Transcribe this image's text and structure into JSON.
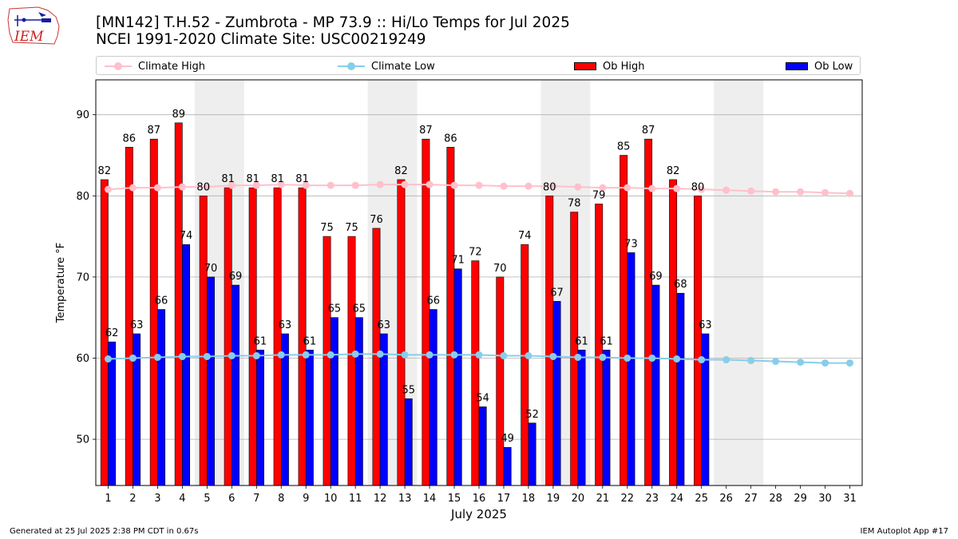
{
  "header": {
    "logo_text": "IEM",
    "title_line1": "[MN142] T.H.52 - Zumbrota - MP 73.9  :: Hi/Lo Temps for Jul 2025",
    "title_line2": "NCEI 1991-2020 Climate Site: USC00219249"
  },
  "legend": {
    "climate_high": "Climate High",
    "climate_low": "Climate Low",
    "ob_high": "Ob High",
    "ob_low": "Ob Low"
  },
  "footer": {
    "left": "Generated at 25 Jul 2025 2:38 PM CDT in 0.67s",
    "right": "IEM Autoplot App #17"
  },
  "colors": {
    "ob_high": "#ff0000",
    "ob_low": "#0000ff",
    "climate_high": "#ffc0cb",
    "climate_low": "#87ceeb",
    "weekend_band": "#eeeeee",
    "grid": "#b0b0b0"
  },
  "chart_data": {
    "type": "bar",
    "title": "[MN142] T.H.52 - Zumbrota - MP 73.9  :: Hi/Lo Temps for Jul 2025",
    "subtitle": "NCEI 1991-2020 Climate Site: USC00219249",
    "xlabel": "July 2025",
    "ylabel": "Temperature °F",
    "ylim": [
      44.3,
      94.3
    ],
    "yticks": [
      50,
      60,
      70,
      80,
      90
    ],
    "grid": "horizontal",
    "legend_position": "top",
    "days": [
      1,
      2,
      3,
      4,
      5,
      6,
      7,
      8,
      9,
      10,
      11,
      12,
      13,
      14,
      15,
      16,
      17,
      18,
      19,
      20,
      21,
      22,
      23,
      24,
      25,
      26,
      27,
      28,
      29,
      30,
      31
    ],
    "weekend_shaded_days": [
      [
        5,
        6
      ],
      [
        12,
        13
      ],
      [
        19,
        20
      ],
      [
        26,
        27
      ]
    ],
    "series": [
      {
        "name": "Ob High",
        "kind": "bar",
        "color": "#ff0000",
        "values": [
          82,
          86,
          87,
          89,
          80,
          81,
          81,
          81,
          81,
          75,
          75,
          76,
          82,
          87,
          86,
          72,
          70,
          74,
          80,
          78,
          79,
          85,
          87,
          82,
          80
        ]
      },
      {
        "name": "Ob Low",
        "kind": "bar",
        "color": "#0000ff",
        "values": [
          62,
          63,
          66,
          74,
          70,
          69,
          61,
          63,
          61,
          65,
          65,
          63,
          55,
          66,
          71,
          54,
          49,
          52,
          67,
          61,
          61,
          73,
          69,
          68,
          63
        ]
      },
      {
        "name": "Climate High",
        "kind": "line",
        "color": "#ffc0cb",
        "values": [
          80.8,
          81.0,
          81.0,
          81.1,
          81.1,
          81.3,
          81.3,
          81.4,
          81.3,
          81.3,
          81.3,
          81.4,
          81.4,
          81.4,
          81.3,
          81.3,
          81.2,
          81.2,
          81.2,
          81.1,
          81.0,
          81.0,
          80.9,
          80.9,
          80.8,
          80.7,
          80.6,
          80.5,
          80.5,
          80.4,
          80.3
        ]
      },
      {
        "name": "Climate Low",
        "kind": "line",
        "color": "#87ceeb",
        "values": [
          59.9,
          60.0,
          60.1,
          60.2,
          60.2,
          60.3,
          60.3,
          60.4,
          60.4,
          60.4,
          60.5,
          60.5,
          60.4,
          60.4,
          60.4,
          60.4,
          60.3,
          60.3,
          60.2,
          60.1,
          60.1,
          60.0,
          60.0,
          59.9,
          59.8,
          59.8,
          59.7,
          59.6,
          59.5,
          59.4,
          59.4
        ]
      }
    ]
  }
}
